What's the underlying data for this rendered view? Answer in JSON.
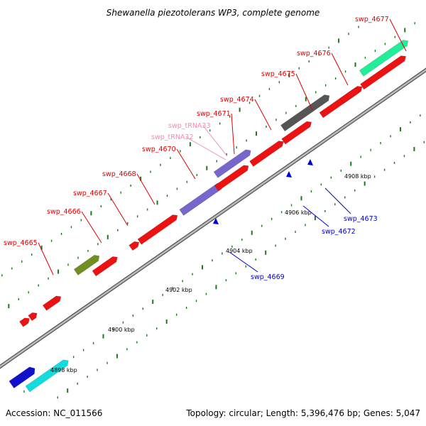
{
  "title": "Shewanella piezotolerans WP3, complete genome",
  "footer": {
    "accession": "Accession: NC_011566",
    "summary": "Topology: circular; Length: 5,396,476 bp; Genes: 5,047"
  },
  "colors": {
    "forward_gene_label": "#e00000",
    "reverse_gene_label": "#0000c8",
    "trna_label": "#f08cb4",
    "cds": "#ee1111",
    "backbone": "#888888",
    "tick": "#1a7a1a"
  },
  "ticks": [
    "4898 kbp",
    "4900 kbp",
    "4902 kbp",
    "4904 kbp",
    "4906 kbp",
    "4908 kbp"
  ],
  "genes": [
    {
      "id": "swp_4665",
      "strand": "forward"
    },
    {
      "id": "swp_4666",
      "strand": "forward"
    },
    {
      "id": "swp_4667",
      "strand": "forward"
    },
    {
      "id": "swp_4668",
      "strand": "forward"
    },
    {
      "id": "swp_4670",
      "strand": "forward"
    },
    {
      "id": "swp_tRNA32",
      "strand": "forward",
      "type": "tRNA"
    },
    {
      "id": "swp_tRNA33",
      "strand": "forward",
      "type": "tRNA"
    },
    {
      "id": "swp_4671",
      "strand": "forward"
    },
    {
      "id": "swp_4674",
      "strand": "forward"
    },
    {
      "id": "swp_4675",
      "strand": "forward"
    },
    {
      "id": "swp_4676",
      "strand": "forward"
    },
    {
      "id": "swp_4677",
      "strand": "forward"
    },
    {
      "id": "swp_4669",
      "strand": "reverse"
    },
    {
      "id": "swp_4672",
      "strand": "reverse"
    },
    {
      "id": "swp_4673",
      "strand": "reverse"
    }
  ]
}
